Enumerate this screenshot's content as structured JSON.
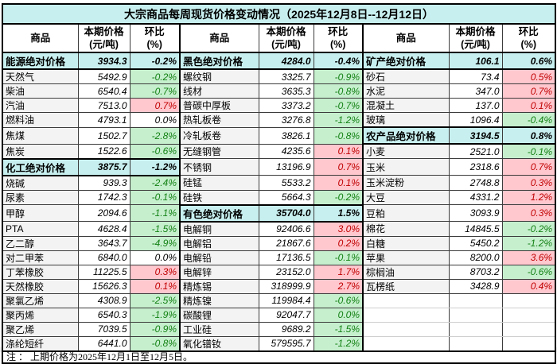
{
  "title": "大宗商品每周现货价格变动情况（2025年12月8日--12月12日）",
  "note": "注 ： 上期价格为2025年12月1日至12月5日。",
  "header": {
    "commodity": "商品",
    "price_l1": "本期价格",
    "price_l2": "(元/吨)",
    "pct_l1": "环比",
    "pct_l2": "(%)"
  },
  "colors": {
    "section_bg": "#C8EFEF",
    "up_bg": "#FFC7CE",
    "up_text": "#C00000",
    "down_bg": "#C6EFCE",
    "down_text": "#148214",
    "border_dark": "#000000"
  },
  "groups": [
    {
      "rows": [
        {
          "name": "能源绝对价格",
          "price": "3934.3",
          "pct": "-0.2%",
          "type": "section"
        },
        {
          "name": "天然气",
          "price": "5492.9",
          "pct": "-0.2%",
          "tone": "neg"
        },
        {
          "name": "柴油",
          "price": "6540.4",
          "pct": "-0.7%",
          "tone": "neg"
        },
        {
          "name": "汽油",
          "price": "7513.0",
          "pct": "0.7%",
          "tone": "pos"
        },
        {
          "name": "燃料油",
          "price": "4793.1",
          "pct": "0.0%",
          "tone": "zero"
        },
        {
          "name": "焦煤",
          "price": "1502.7",
          "pct": "-2.8%",
          "tone": "neg"
        },
        {
          "name": "焦炭",
          "price": "1522.6",
          "pct": "-0.6%",
          "tone": "neg"
        },
        {
          "name": "化工绝对价格",
          "price": "3875.7",
          "pct": "-1.2%",
          "type": "section"
        },
        {
          "name": "烧碱",
          "price": "939.3",
          "pct": "-2.4%",
          "tone": "neg"
        },
        {
          "name": "尿素",
          "price": "1742.3",
          "pct": "-0.1%",
          "tone": "neg"
        },
        {
          "name": "甲醇",
          "price": "2094.6",
          "pct": "-1.1%",
          "tone": "neg"
        },
        {
          "name": "PTA",
          "price": "4628.4",
          "pct": "-1.5%",
          "tone": "neg"
        },
        {
          "name": "乙二醇",
          "price": "3643.7",
          "pct": "-4.9%",
          "tone": "neg"
        },
        {
          "name": "对二甲苯",
          "price": "6840.0",
          "pct": "0.0%",
          "tone": "zero"
        },
        {
          "name": "丁苯橡胶",
          "price": "11225.5",
          "pct": "0.3%",
          "tone": "pos"
        },
        {
          "name": "天然橡胶",
          "price": "15626.3",
          "pct": "0.1%",
          "tone": "pos"
        },
        {
          "name": "聚氯乙烯",
          "price": "4308.9",
          "pct": "-2.5%",
          "tone": "neg"
        },
        {
          "name": "聚丙烯",
          "price": "6540.3",
          "pct": "-1.9%",
          "tone": "neg"
        },
        {
          "name": "聚乙烯",
          "price": "7039.5",
          "pct": "-0.9%",
          "tone": "neg"
        },
        {
          "name": "涤纶短纤",
          "price": "6441.0",
          "pct": "-0.8%",
          "tone": "neg"
        }
      ]
    },
    {
      "rows": [
        {
          "name": "黑色绝对价格",
          "price": "4284.0",
          "pct": "-0.4%",
          "type": "section"
        },
        {
          "name": "螺纹钢",
          "price": "3325.7",
          "pct": "-0.9%",
          "tone": "neg"
        },
        {
          "name": "线材",
          "price": "3635.3",
          "pct": "-0.8%",
          "tone": "neg"
        },
        {
          "name": "普碳中厚板",
          "price": "3373.2",
          "pct": "-0.7%",
          "tone": "neg"
        },
        {
          "name": "热轧板卷",
          "price": "3276.8",
          "pct": "-1.2%",
          "tone": "neg"
        },
        {
          "name": "冷轧板卷",
          "price": "3826.1",
          "pct": "-0.8%",
          "tone": "neg"
        },
        {
          "name": "无缝钢管",
          "price": "4235.6",
          "pct": "0.1%",
          "tone": "pos"
        },
        {
          "name": "不锈钢",
          "price": "13196.9",
          "pct": "0.7%",
          "tone": "pos"
        },
        {
          "name": "硅锰",
          "price": "5533.2",
          "pct": "0.1%",
          "tone": "pos"
        },
        {
          "name": "硅铁",
          "price": "5664.3",
          "pct": "-0.2%",
          "tone": "neg"
        },
        {
          "name": "有色绝对价格",
          "price": "35704.0",
          "pct": "1.5%",
          "type": "section"
        },
        {
          "name": "电解铜",
          "price": "92406.6",
          "pct": "3.0%",
          "tone": "pos"
        },
        {
          "name": "电解铝",
          "price": "21867.6",
          "pct": "0.2%",
          "tone": "pos"
        },
        {
          "name": "电解铅",
          "price": "17136.5",
          "pct": "-0.1%",
          "tone": "neg"
        },
        {
          "name": "电解锌",
          "price": "23152.0",
          "pct": "1.7%",
          "tone": "pos"
        },
        {
          "name": "精炼锡",
          "price": "318999.9",
          "pct": "2.7%",
          "tone": "pos"
        },
        {
          "name": "精炼镍",
          "price": "119984.4",
          "pct": "-0.6%",
          "tone": "neg"
        },
        {
          "name": "碳酸锂",
          "price": "92047.7",
          "pct": "0.0%",
          "tone": "neg"
        },
        {
          "name": "工业硅",
          "price": "9689.2",
          "pct": "-1.5%",
          "tone": "neg"
        },
        {
          "name": "氧化镨钕",
          "price": "579595.7",
          "pct": "-1.2%",
          "tone": "neg"
        }
      ]
    },
    {
      "rows": [
        {
          "name": "矿产绝对价格",
          "price": "106.1",
          "pct": "0.6%",
          "type": "section"
        },
        {
          "name": "砂石",
          "price": "73.4",
          "pct": "0.5%",
          "tone": "pos"
        },
        {
          "name": "水泥",
          "price": "347.0",
          "pct": "0.7%",
          "tone": "pos"
        },
        {
          "name": "混凝土",
          "price": "137.0",
          "pct": "0.1%",
          "tone": "pos"
        },
        {
          "name": "玻璃",
          "price": "1096.4",
          "pct": "-0.4%",
          "tone": "neg"
        },
        {
          "name": "农产品绝对价格",
          "price": "3194.5",
          "pct": "0.8%",
          "type": "section"
        },
        {
          "name": "小麦",
          "price": "2521.0",
          "pct": "-0.1%",
          "tone": "neg"
        },
        {
          "name": "玉米",
          "price": "2318.6",
          "pct": "0.7%",
          "tone": "pos"
        },
        {
          "name": "玉米淀粉",
          "price": "2748.8",
          "pct": "0.3%",
          "tone": "pos"
        },
        {
          "name": "大豆",
          "price": "4331.2",
          "pct": "1.2%",
          "tone": "pos"
        },
        {
          "name": "豆粕",
          "price": "3093.9",
          "pct": "0.3%",
          "tone": "pos"
        },
        {
          "name": "棉花",
          "price": "14845.5",
          "pct": "-0.2%",
          "tone": "neg"
        },
        {
          "name": "白糖",
          "price": "5450.2",
          "pct": "-1.2%",
          "tone": "neg"
        },
        {
          "name": "苹果",
          "price": "8200.0",
          "pct": "3.6%",
          "tone": "pos"
        },
        {
          "name": "棕榈油",
          "price": "8703.2",
          "pct": "-0.6%",
          "tone": "neg"
        },
        {
          "name": "瓦楞纸",
          "price": "3428.9",
          "pct": "0.4%",
          "tone": "pos"
        }
      ]
    }
  ]
}
